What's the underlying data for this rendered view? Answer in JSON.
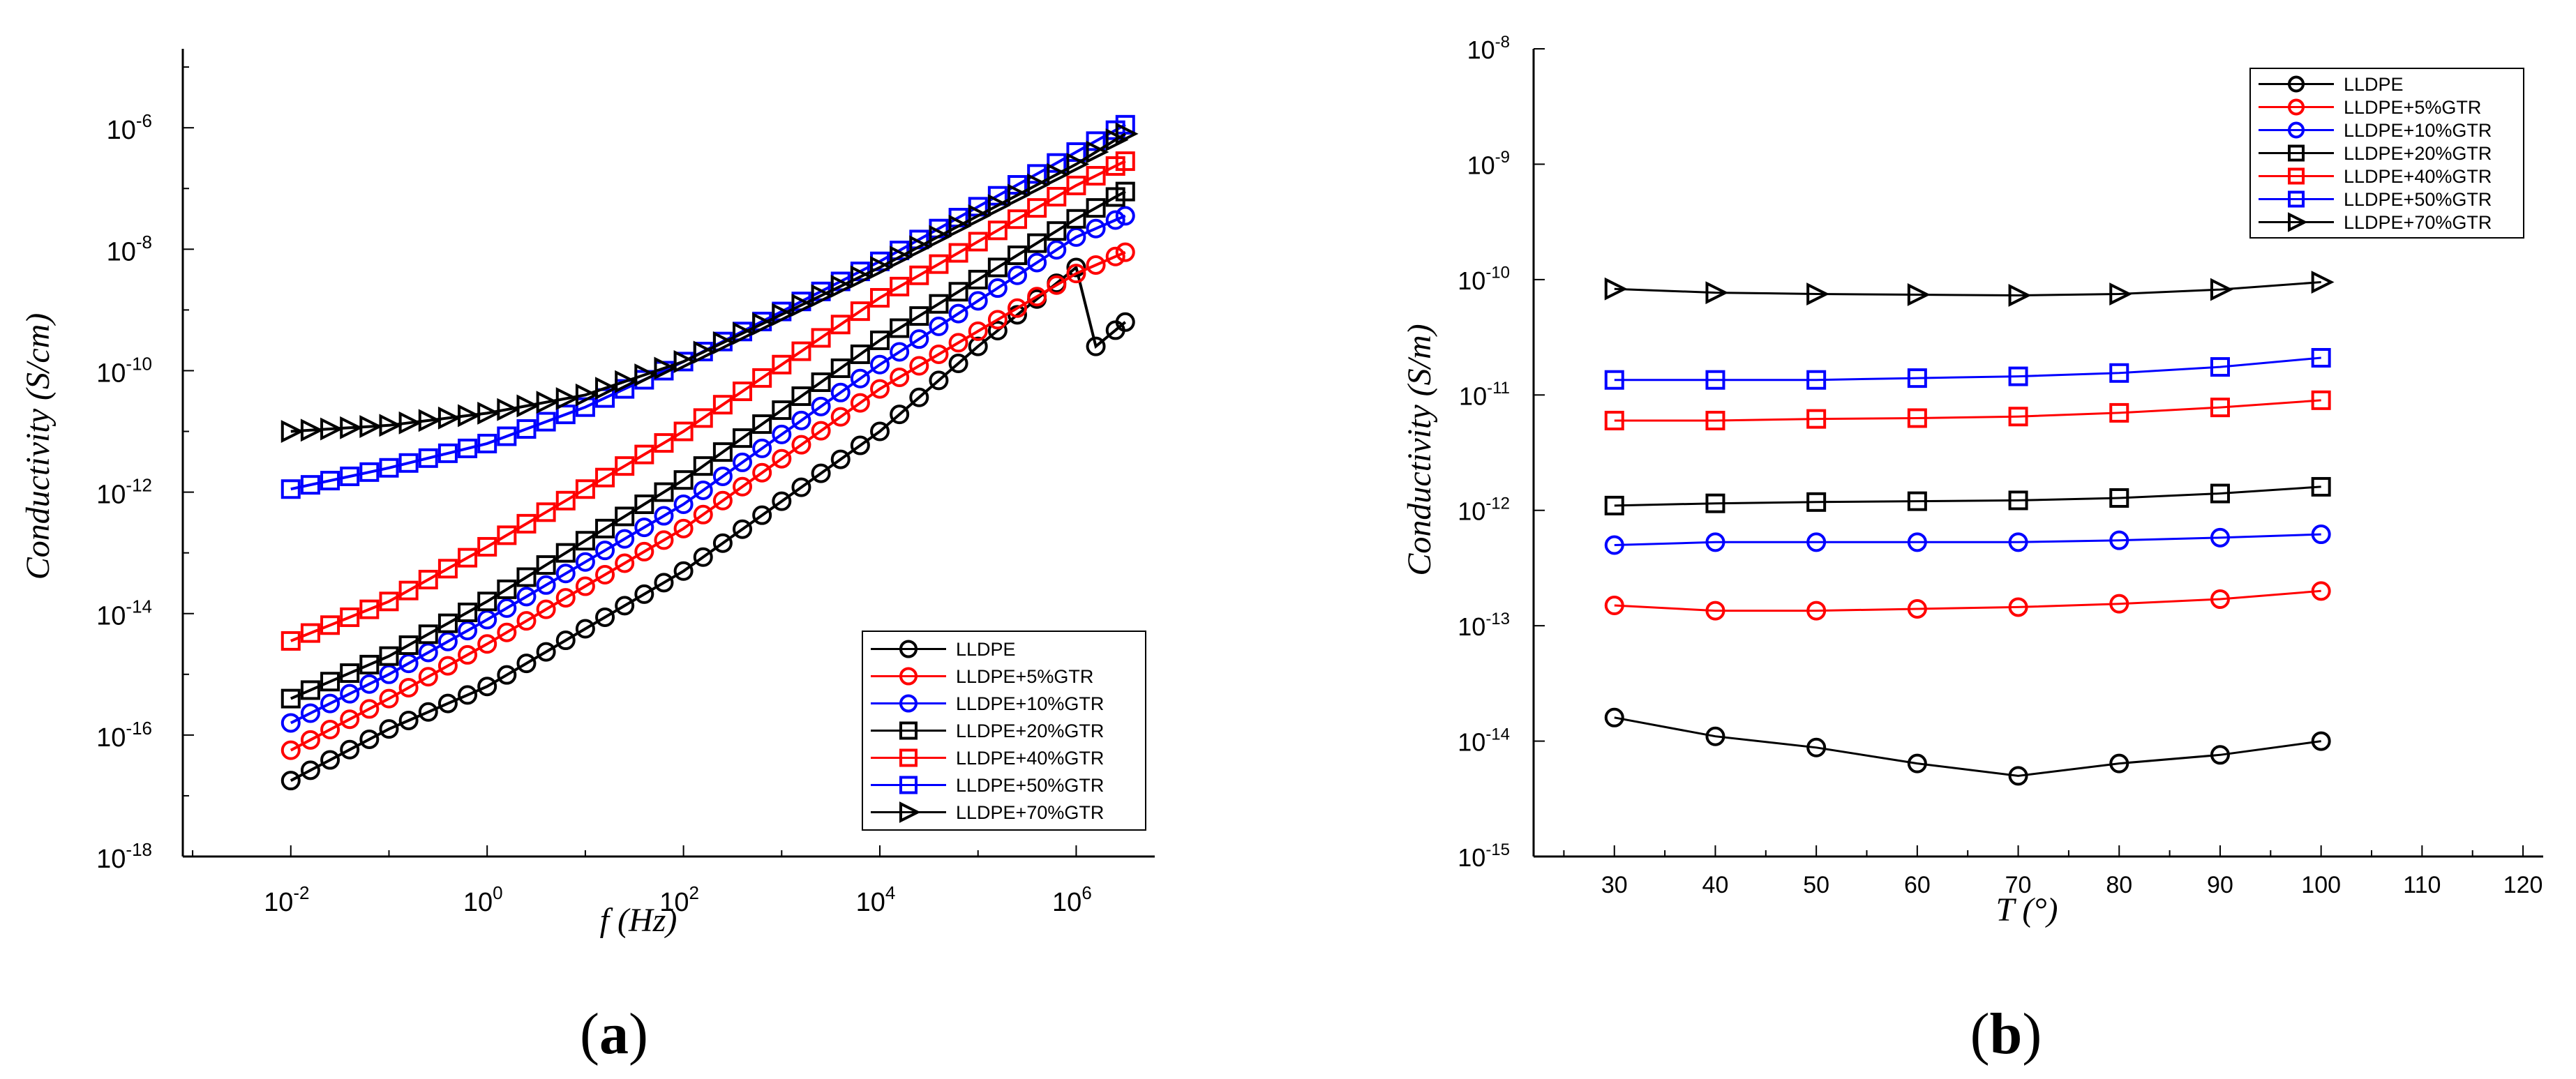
{
  "colors": {
    "black": "#000000",
    "red": "#ff0000",
    "blue": "#0000ff"
  },
  "chart_data": [
    {
      "type": "line",
      "panel_label_open": "(",
      "panel_label_letter": "a",
      "panel_label_close": ")",
      "xlabel": "f (Hz)",
      "ylabel": "Conductivity (S/cm)",
      "xscale": "log",
      "yscale": "log",
      "xlim_exp": [
        -3.1,
        6.8
      ],
      "ylim_exp": [
        -18,
        -4.7
      ],
      "x_ticks": [
        {
          "mantissa": "10",
          "exp": "-2"
        },
        {
          "mantissa": "10",
          "exp": "0"
        },
        {
          "mantissa": "10",
          "exp": "2"
        },
        {
          "mantissa": "10",
          "exp": "4"
        },
        {
          "mantissa": "10",
          "exp": "6"
        }
      ],
      "x_tick_exps": [
        -2,
        0,
        2,
        4,
        6
      ],
      "y_ticks": [
        {
          "mantissa": "10",
          "exp": "-18"
        },
        {
          "mantissa": "10",
          "exp": "-16"
        },
        {
          "mantissa": "10",
          "exp": "-14"
        },
        {
          "mantissa": "10",
          "exp": "-12"
        },
        {
          "mantissa": "10",
          "exp": "-10"
        },
        {
          "mantissa": "10",
          "exp": "-8"
        },
        {
          "mantissa": "10",
          "exp": "-6"
        }
      ],
      "y_tick_exps": [
        -18,
        -16,
        -14,
        -12,
        -10,
        -8,
        -6
      ],
      "legend_position": "lower-right",
      "series": [
        {
          "name": "LLDPE",
          "color": "#000000",
          "marker": "circle",
          "x_exp": [
            -2,
            -1,
            0,
            2,
            4,
            5,
            6,
            6.2,
            6.5
          ],
          "log_y": [
            -16.75,
            -15.9,
            -15.2,
            -13.3,
            -11.0,
            -9.6,
            -8.3,
            -9.6,
            -9.2
          ]
        },
        {
          "name": "LLDPE+5%GTR",
          "color": "#ff0000",
          "marker": "circle",
          "x_exp": [
            -2,
            -1,
            0,
            2,
            4,
            6,
            6.5
          ],
          "log_y": [
            -16.25,
            -15.4,
            -14.5,
            -12.6,
            -10.3,
            -8.4,
            -8.05
          ]
        },
        {
          "name": "LLDPE+10%GTR",
          "color": "#0000ff",
          "marker": "circle",
          "x_exp": [
            -2,
            -1,
            0,
            2,
            4,
            6,
            6.5
          ],
          "log_y": [
            -15.8,
            -15.0,
            -14.1,
            -12.2,
            -9.9,
            -7.8,
            -7.45
          ]
        },
        {
          "name": "LLDPE+20%GTR",
          "color": "#000000",
          "marker": "square",
          "x_exp": [
            -2,
            -1,
            0,
            2,
            4,
            6,
            6.5
          ],
          "log_y": [
            -15.4,
            -14.7,
            -13.8,
            -11.8,
            -9.5,
            -7.5,
            -7.05
          ]
        },
        {
          "name": "LLDPE+40%GTR",
          "color": "#ff0000",
          "marker": "square",
          "x_exp": [
            -2,
            -1,
            0,
            2,
            4,
            6,
            6.5
          ],
          "log_y": [
            -14.45,
            -13.8,
            -12.9,
            -11.0,
            -8.8,
            -6.95,
            -6.55
          ]
        },
        {
          "name": "LLDPE+50%GTR",
          "color": "#0000ff",
          "marker": "square",
          "x_exp": [
            -2,
            -1,
            0,
            1,
            2,
            4,
            6,
            6.5
          ],
          "log_y": [
            -11.95,
            -11.6,
            -11.2,
            -10.6,
            -9.85,
            -8.2,
            -6.4,
            -5.95
          ]
        },
        {
          "name": "LLDPE+70%GTR",
          "color": "#000000",
          "marker": "triangle-right",
          "x_exp": [
            -2,
            -1,
            0,
            1,
            2,
            4,
            6,
            6.5
          ],
          "log_y": [
            -11.0,
            -10.9,
            -10.7,
            -10.4,
            -9.85,
            -8.3,
            -6.6,
            -6.1
          ]
        }
      ]
    },
    {
      "type": "line",
      "panel_label_open": "(",
      "panel_label_letter": "b",
      "panel_label_close": ")",
      "xlabel": "T (°)",
      "ylabel": "Conductivity (S/m)",
      "xscale": "linear",
      "yscale": "log",
      "xlim": [
        22,
        122
      ],
      "ylim_exp": [
        -15,
        -8
      ],
      "x_ticks": [
        "30",
        "40",
        "50",
        "60",
        "70",
        "80",
        "90",
        "100",
        "110",
        "120"
      ],
      "x_tick_values": [
        30,
        40,
        50,
        60,
        70,
        80,
        90,
        100,
        110,
        120
      ],
      "y_ticks": [
        {
          "mantissa": "10",
          "exp": "-15"
        },
        {
          "mantissa": "10",
          "exp": "-14"
        },
        {
          "mantissa": "10",
          "exp": "-13"
        },
        {
          "mantissa": "10",
          "exp": "-12"
        },
        {
          "mantissa": "10",
          "exp": "-11"
        },
        {
          "mantissa": "10",
          "exp": "-10"
        },
        {
          "mantissa": "10",
          "exp": "-9"
        },
        {
          "mantissa": "10",
          "exp": "-8"
        }
      ],
      "y_tick_exps": [
        -15,
        -14,
        -13,
        -12,
        -11,
        -10,
        -9,
        -8
      ],
      "legend_position": "top-right",
      "x": [
        30,
        40,
        50,
        60,
        70,
        80,
        90,
        100
      ],
      "series": [
        {
          "name": "LLDPE",
          "color": "#000000",
          "marker": "circle",
          "values": [
            1.6e-14,
            1.1e-14,
            8.8e-15,
            6.4e-15,
            5e-15,
            6.4e-15,
            7.6e-15,
            1e-14
          ]
        },
        {
          "name": "LLDPE+5%GTR",
          "color": "#ff0000",
          "marker": "circle",
          "values": [
            1.5e-13,
            1.35e-13,
            1.35e-13,
            1.4e-13,
            1.45e-13,
            1.55e-13,
            1.7e-13,
            2e-13
          ]
        },
        {
          "name": "LLDPE+10%GTR",
          "color": "#0000ff",
          "marker": "circle",
          "values": [
            5e-13,
            5.3e-13,
            5.3e-13,
            5.3e-13,
            5.3e-13,
            5.5e-13,
            5.8e-13,
            6.2e-13
          ]
        },
        {
          "name": "LLDPE+20%GTR",
          "color": "#000000",
          "marker": "square",
          "values": [
            1.1e-12,
            1.15e-12,
            1.18e-12,
            1.2e-12,
            1.22e-12,
            1.28e-12,
            1.4e-12,
            1.6e-12
          ]
        },
        {
          "name": "LLDPE+40%GTR",
          "color": "#ff0000",
          "marker": "square",
          "values": [
            6e-12,
            6e-12,
            6.2e-12,
            6.3e-12,
            6.5e-12,
            7e-12,
            7.8e-12,
            9e-12
          ]
        },
        {
          "name": "LLDPE+50%GTR",
          "color": "#0000ff",
          "marker": "square",
          "values": [
            1.35e-11,
            1.35e-11,
            1.35e-11,
            1.4e-11,
            1.45e-11,
            1.55e-11,
            1.75e-11,
            2.1e-11
          ]
        },
        {
          "name": "LLDPE+70%GTR",
          "color": "#000000",
          "marker": "triangle-right",
          "values": [
            8.3e-11,
            7.7e-11,
            7.5e-11,
            7.4e-11,
            7.3e-11,
            7.5e-11,
            8.2e-11,
            9.5e-11
          ]
        }
      ]
    }
  ]
}
